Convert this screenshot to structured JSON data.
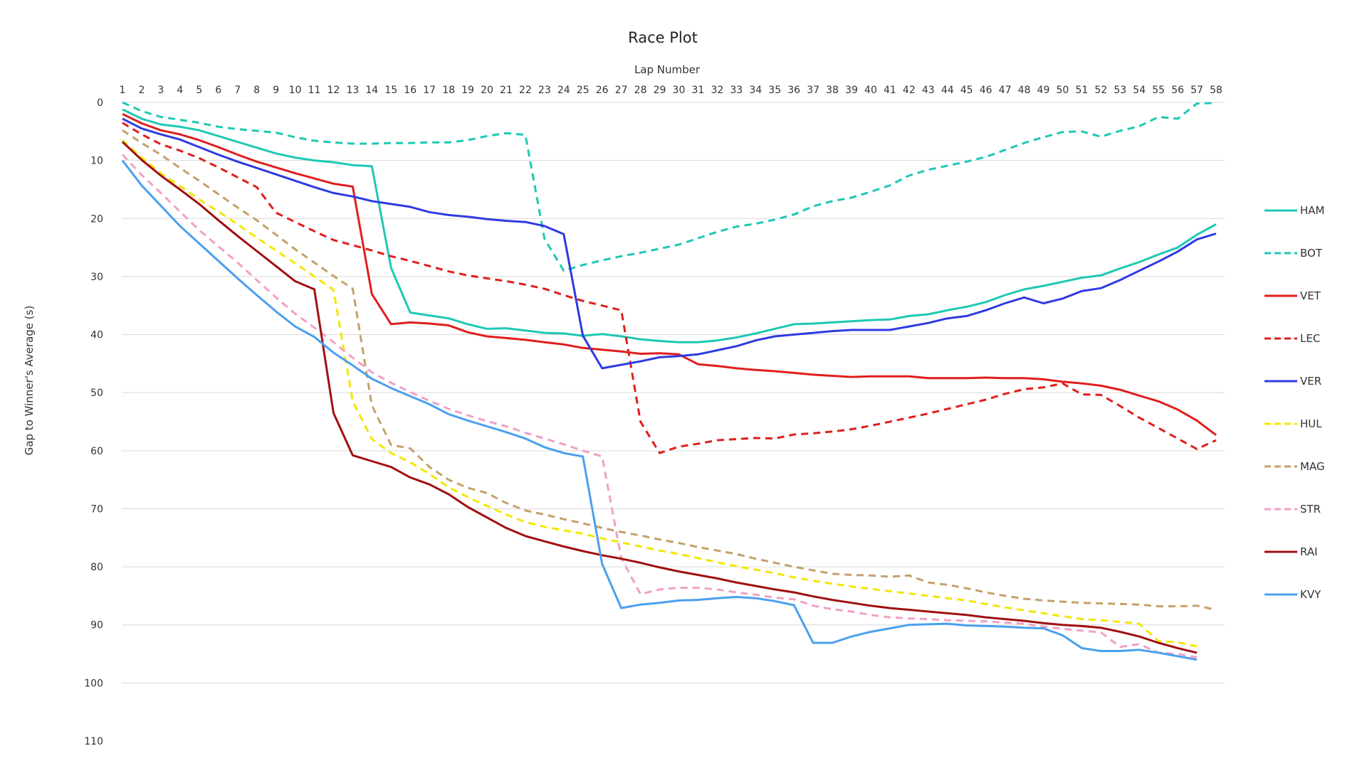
{
  "chart_data": {
    "type": "line",
    "title": "Race Plot",
    "xlabel": "Lap Number",
    "ylabel": "Gap to Winner's Average (s)",
    "x": [
      1,
      2,
      3,
      4,
      5,
      6,
      7,
      8,
      9,
      10,
      11,
      12,
      13,
      14,
      15,
      16,
      17,
      18,
      19,
      20,
      21,
      22,
      23,
      24,
      25,
      26,
      27,
      28,
      29,
      30,
      31,
      32,
      33,
      34,
      35,
      36,
      37,
      38,
      39,
      40,
      41,
      42,
      43,
      44,
      45,
      46,
      47,
      48,
      49,
      50,
      51,
      52,
      53,
      54,
      55,
      56,
      57,
      58
    ],
    "y_ticks": [
      0,
      10,
      20,
      30,
      40,
      50,
      60,
      70,
      80,
      90,
      100,
      110
    ],
    "ylim": [
      0,
      110
    ],
    "y_inverted": true,
    "x_axis_position": "top",
    "grid": true,
    "legend_position": "right",
    "series": [
      {
        "name": "HAM",
        "color": "#1ec8b4",
        "dash": false,
        "values": [
          1.2,
          2.8,
          3.8,
          4.2,
          4.8,
          5.8,
          6.8,
          7.8,
          8.8,
          9.5,
          10.0,
          10.3,
          10.8,
          11.0,
          28.5,
          36.2,
          36.7,
          37.2,
          38.2,
          39.0,
          38.9,
          39.3,
          39.7,
          39.8,
          40.2,
          39.9,
          40.3,
          40.8,
          41.1,
          41.3,
          41.3,
          41.0,
          40.5,
          39.8,
          39.0,
          38.2,
          38.1,
          37.9,
          37.7,
          37.5,
          37.4,
          36.8,
          36.5,
          35.8,
          35.2,
          34.4,
          33.2,
          32.2,
          31.6,
          30.9,
          30.2,
          29.8,
          28.6,
          27.5,
          26.2,
          25.0,
          22.8,
          21.0
        ]
      },
      {
        "name": "BOT",
        "color": "#1ec8b4",
        "dash": true,
        "values": [
          0.0,
          1.5,
          2.5,
          3.0,
          3.5,
          4.2,
          4.6,
          4.9,
          5.2,
          6.0,
          6.6,
          6.9,
          7.1,
          7.1,
          7.0,
          7.0,
          6.9,
          6.9,
          6.5,
          5.8,
          5.3,
          5.6,
          23.5,
          29.0,
          28.0,
          27.2,
          26.5,
          25.9,
          25.2,
          24.5,
          23.4,
          22.3,
          21.4,
          20.9,
          20.2,
          19.3,
          17.9,
          17.0,
          16.4,
          15.4,
          14.3,
          12.6,
          11.6,
          10.9,
          10.2,
          9.4,
          8.2,
          7.0,
          6.0,
          5.1,
          5.0,
          5.9,
          4.9,
          4.1,
          2.5,
          2.8,
          0.2,
          0.1
        ]
      },
      {
        "name": "VET",
        "color": "#e01e1e",
        "dash": false,
        "values": [
          2.0,
          3.6,
          4.8,
          5.5,
          6.5,
          7.7,
          9.0,
          10.2,
          11.2,
          12.2,
          13.1,
          14.0,
          14.5,
          33.0,
          38.2,
          37.9,
          38.1,
          38.4,
          39.6,
          40.3,
          40.6,
          40.9,
          41.3,
          41.7,
          42.3,
          42.6,
          42.9,
          43.3,
          43.2,
          43.4,
          45.1,
          45.4,
          45.8,
          46.1,
          46.3,
          46.6,
          46.9,
          47.1,
          47.3,
          47.2,
          47.2,
          47.2,
          47.5,
          47.5,
          47.5,
          47.4,
          47.5,
          47.5,
          47.7,
          48.1,
          48.4,
          48.8,
          49.5,
          50.5,
          51.5,
          52.9,
          54.8,
          57.3
        ]
      },
      {
        "name": "LEC",
        "color": "#e01e1e",
        "dash": true,
        "values": [
          3.5,
          5.5,
          7.2,
          8.3,
          9.6,
          11.2,
          12.9,
          14.6,
          19.0,
          20.6,
          22.2,
          23.7,
          24.6,
          25.5,
          26.5,
          27.3,
          28.2,
          29.1,
          29.8,
          30.3,
          30.8,
          31.4,
          32.1,
          33.2,
          34.2,
          35.0,
          35.8,
          55.0,
          60.4,
          59.3,
          58.8,
          58.2,
          58.0,
          57.8,
          57.9,
          57.2,
          57.0,
          56.7,
          56.3,
          55.7,
          55.0,
          54.3,
          53.6,
          52.8,
          52.0,
          51.2,
          50.2,
          49.4,
          49.1,
          48.4,
          50.3,
          50.4,
          52.3,
          54.3,
          56.1,
          57.9,
          59.7,
          58.2
        ]
      },
      {
        "name": "VER",
        "color": "#2d3be0",
        "dash": false,
        "values": [
          2.8,
          4.5,
          5.5,
          6.4,
          7.7,
          9.0,
          10.2,
          11.3,
          12.4,
          13.5,
          14.6,
          15.6,
          16.2,
          17.0,
          17.5,
          18.0,
          18.9,
          19.4,
          19.7,
          20.1,
          20.4,
          20.6,
          21.3,
          22.7,
          40.2,
          45.8,
          45.2,
          44.6,
          43.9,
          43.7,
          43.4,
          42.7,
          42.0,
          41.0,
          40.3,
          40.0,
          39.7,
          39.4,
          39.2,
          39.2,
          39.2,
          38.6,
          38.0,
          37.2,
          36.8,
          35.8,
          34.6,
          33.6,
          34.6,
          33.8,
          32.5,
          32.0,
          30.6,
          29.0,
          27.4,
          25.7,
          23.6,
          22.6
        ]
      },
      {
        "name": "HUL",
        "color": "#f5e600",
        "dash": true,
        "values": [
          6.5,
          9.5,
          12.2,
          14.4,
          16.7,
          18.8,
          21.0,
          23.3,
          25.5,
          27.7,
          30.0,
          32.3,
          51.5,
          58.0,
          60.4,
          62.0,
          64.0,
          66.3,
          68.0,
          69.5,
          71.0,
          72.3,
          73.1,
          73.7,
          74.3,
          75.1,
          75.8,
          76.5,
          77.2,
          77.8,
          78.5,
          79.2,
          79.9,
          80.5,
          81.1,
          81.8,
          82.4,
          82.9,
          83.4,
          83.8,
          84.2,
          84.6,
          85.0,
          85.4,
          85.8,
          86.4,
          87.0,
          87.5,
          88.0,
          88.5,
          89.0,
          89.2,
          89.5,
          89.8,
          92.8,
          93.0,
          93.7,
          null
        ]
      },
      {
        "name": "MAG",
        "color": "#c4a06a",
        "dash": true,
        "values": [
          4.8,
          7.0,
          9.0,
          11.3,
          13.5,
          15.8,
          18.1,
          20.3,
          22.8,
          25.3,
          27.6,
          29.9,
          32.1,
          52.2,
          59.0,
          59.6,
          62.8,
          65.0,
          66.4,
          67.3,
          69.0,
          70.3,
          71.0,
          71.8,
          72.5,
          73.3,
          74.0,
          74.6,
          75.3,
          75.9,
          76.6,
          77.2,
          77.8,
          78.6,
          79.3,
          80.0,
          80.6,
          81.2,
          81.4,
          81.5,
          81.7,
          81.5,
          82.7,
          83.1,
          83.7,
          84.4,
          85.0,
          85.5,
          85.8,
          86.0,
          86.2,
          86.3,
          86.4,
          86.5,
          86.8,
          86.8,
          86.7,
          87.4
        ]
      },
      {
        "name": "STR",
        "color": "#f0a0c8",
        "dash": true,
        "values": [
          9.0,
          12.5,
          15.6,
          18.8,
          22.0,
          24.8,
          27.6,
          30.6,
          33.6,
          36.4,
          38.8,
          41.3,
          44.0,
          46.5,
          48.3,
          49.9,
          51.4,
          52.8,
          53.9,
          54.9,
          55.8,
          56.9,
          57.9,
          58.9,
          60.0,
          61.0,
          78.5,
          84.7,
          83.9,
          83.6,
          83.6,
          83.9,
          84.4,
          84.8,
          85.3,
          85.6,
          86.7,
          87.3,
          87.7,
          88.3,
          88.7,
          88.9,
          89.0,
          89.2,
          89.3,
          89.4,
          89.6,
          89.8,
          90.3,
          90.7,
          91.0,
          91.3,
          93.8,
          93.3,
          94.8,
          95.0,
          95.6,
          null
        ]
      },
      {
        "name": "RAI",
        "color": "#a01010",
        "dash": false,
        "values": [
          6.8,
          9.9,
          12.6,
          15.0,
          17.5,
          20.3,
          23.0,
          25.6,
          28.2,
          30.8,
          32.2,
          53.5,
          60.8,
          61.8,
          62.8,
          64.6,
          65.8,
          67.5,
          69.7,
          71.5,
          73.3,
          74.7,
          75.6,
          76.5,
          77.3,
          78.0,
          78.6,
          79.3,
          80.1,
          80.8,
          81.4,
          82.0,
          82.7,
          83.3,
          83.9,
          84.4,
          85.1,
          85.7,
          86.2,
          86.7,
          87.1,
          87.4,
          87.7,
          88.0,
          88.3,
          88.7,
          89.0,
          89.3,
          89.7,
          90.0,
          90.2,
          90.5,
          91.2,
          92.0,
          93.1,
          94.0,
          94.8,
          null
        ]
      },
      {
        "name": "KVY",
        "color": "#4aa0ef",
        "dash": false,
        "values": [
          10.0,
          14.3,
          17.8,
          21.3,
          24.3,
          27.3,
          30.3,
          33.2,
          36.0,
          38.6,
          40.4,
          43.1,
          45.3,
          47.6,
          49.2,
          50.6,
          52.0,
          53.7,
          54.8,
          55.8,
          56.8,
          57.9,
          59.4,
          60.4,
          61.0,
          79.5,
          87.1,
          86.5,
          86.2,
          85.8,
          85.7,
          85.4,
          85.2,
          85.4,
          85.9,
          86.6,
          93.1,
          93.1,
          92.0,
          91.2,
          90.6,
          90.0,
          89.9,
          89.8,
          90.1,
          90.2,
          90.3,
          90.5,
          90.6,
          91.8,
          94.0,
          94.5,
          94.5,
          94.3,
          94.8,
          95.4,
          96.0,
          null
        ]
      }
    ]
  }
}
